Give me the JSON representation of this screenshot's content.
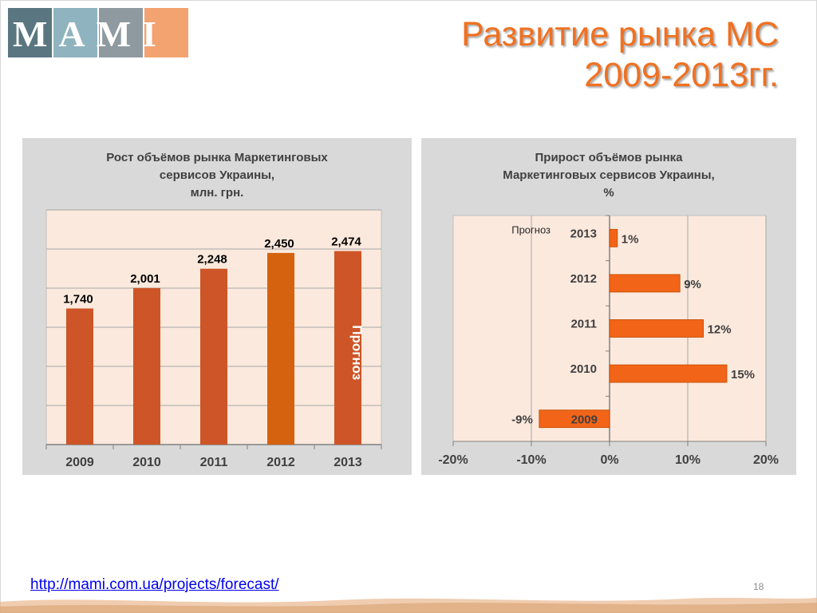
{
  "slide": {
    "title_line1": "Развитие рынка МС",
    "title_line2": "2009-2013гг.",
    "footer_link": "http://mami.com.ua/projects/forecast/",
    "page_number": "18",
    "logo_text": "MAMI"
  },
  "colors": {
    "accent": "#f07020",
    "bar": "#cd5527",
    "bar_alt": "#d4620f",
    "hbar": "#f26418",
    "plot_bg": "#fbe9dd",
    "panel_bg": "#d9d9d9"
  },
  "chart_data": [
    {
      "type": "bar",
      "title_lines": [
        "Рост объёмов рынка Маркетинговых",
        "сервисов Украины,",
        "млн. грн."
      ],
      "categories": [
        "2009",
        "2010",
        "2011",
        "2012",
        "2013"
      ],
      "values": [
        1740,
        2001,
        2248,
        2450,
        2474
      ],
      "value_labels": [
        "1,740",
        "2,001",
        "2,248",
        "2,450",
        "2,474"
      ],
      "ylim": [
        0,
        3000
      ],
      "grid": true,
      "annotation": "Прогноз",
      "annotation_category": "2013"
    },
    {
      "type": "bar",
      "orientation": "horizontal",
      "title_lines": [
        "Прирост объёмов рынка",
        "Маркетинговых сервисов Украины,",
        "%"
      ],
      "categories": [
        "2013",
        "2012",
        "2011",
        "2010",
        "2009"
      ],
      "values": [
        1,
        9,
        12,
        15,
        -9
      ],
      "value_labels": [
        "1%",
        "9%",
        "12%",
        "15%",
        "-9%"
      ],
      "xlim": [
        -20,
        20
      ],
      "x_ticks": [
        "-20%",
        "-10%",
        "0%",
        "10%",
        "20%"
      ],
      "grid": true,
      "annotation": "Прогноз",
      "annotation_category": "2013"
    }
  ]
}
